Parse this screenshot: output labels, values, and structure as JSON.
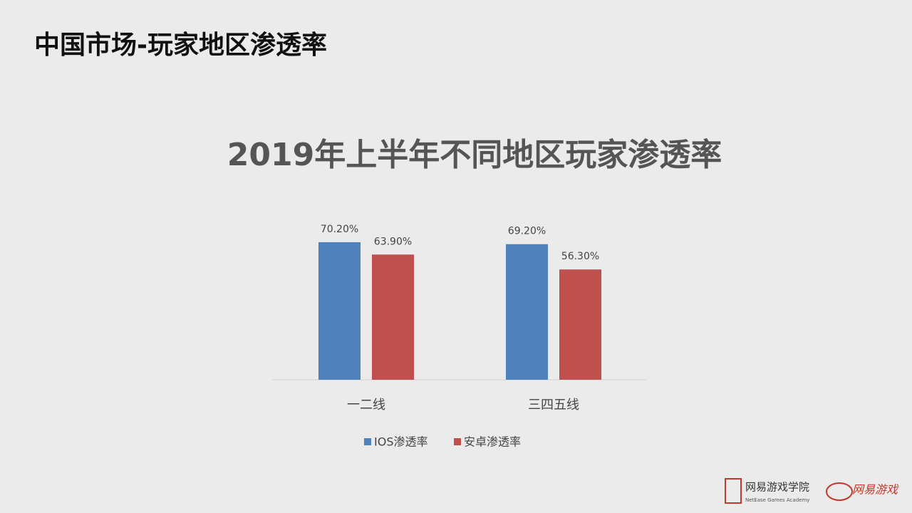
{
  "header": {
    "title": "中国市场-玩家地区渗透率"
  },
  "chart_data": {
    "type": "bar",
    "title": "2019年上半年不同地区玩家渗透率",
    "categories": [
      "一二线",
      "三四五线"
    ],
    "series": [
      {
        "name": "IOS渗透率",
        "color": "#4f81bd",
        "values": [
          70.2,
          69.2
        ],
        "value_labels": [
          "70.20%",
          "69.20%"
        ]
      },
      {
        "name": "安卓渗透率",
        "color": "#c0504d",
        "values": [
          63.9,
          56.3
        ],
        "value_labels": [
          "63.90%",
          "56.30%"
        ]
      }
    ],
    "legend": "bottom"
  },
  "footer": {
    "academy": "网易游戏学院",
    "academy_en": "NetEase Games Academy",
    "brand": "网易游戏"
  }
}
